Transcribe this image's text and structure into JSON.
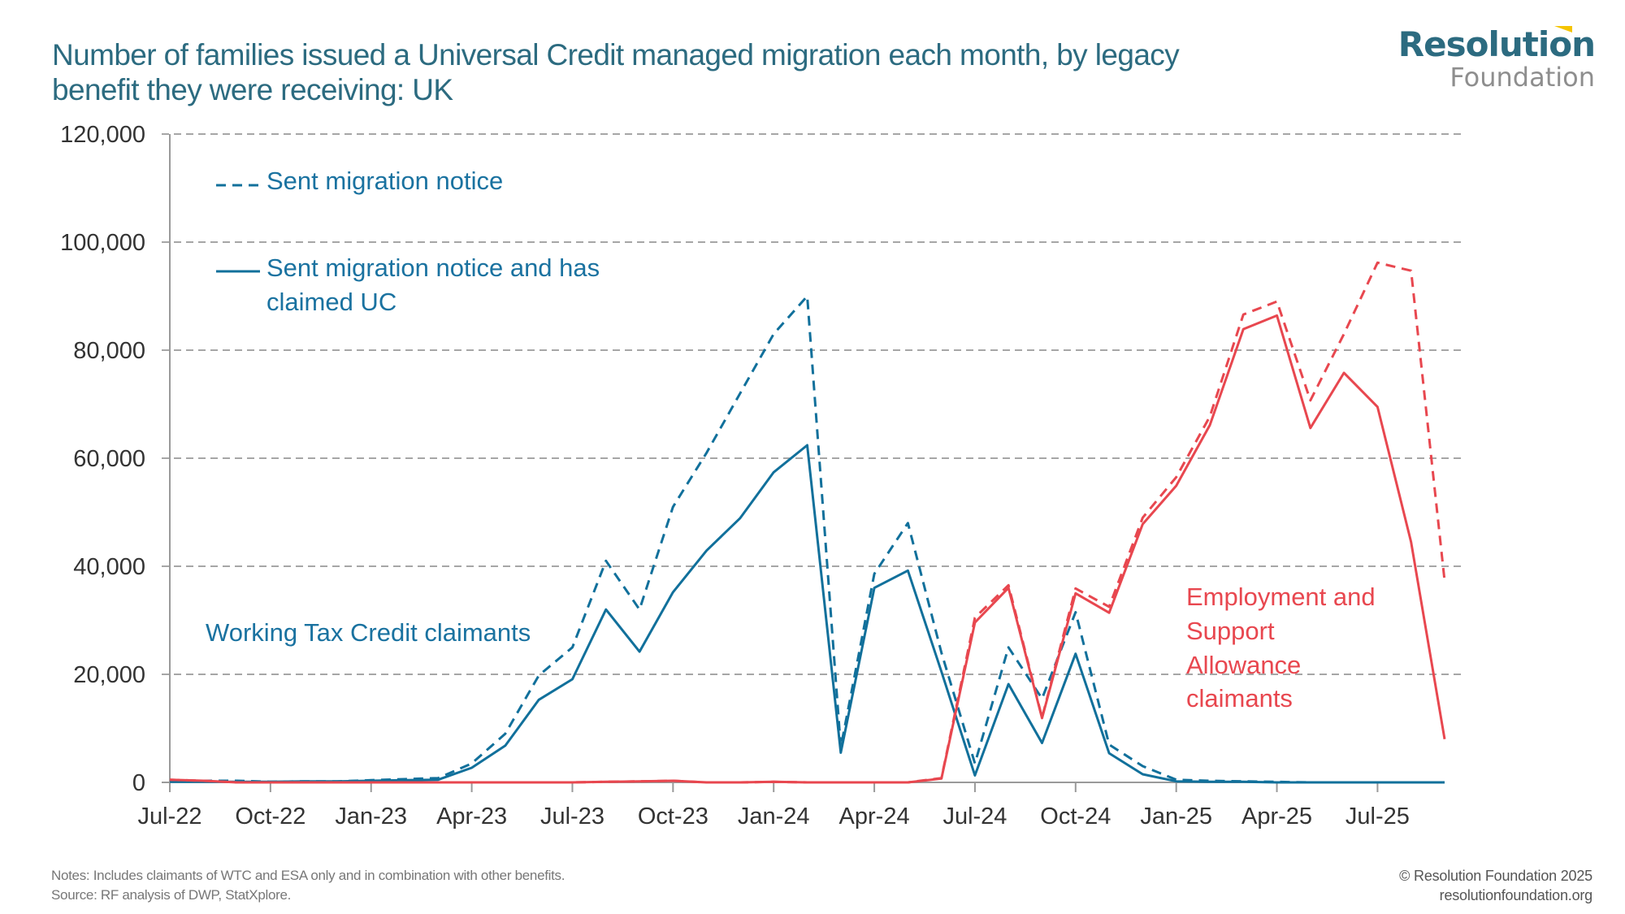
{
  "title": {
    "line1": "Number of families issued a Universal Credit managed migration each month, by legacy",
    "line2": "benefit they were receiving: UK"
  },
  "logo": {
    "top": "Resolution",
    "bottom": "Foundation"
  },
  "footer": {
    "notes": "Notes: Includes claimants of WTC and ESA only and in combination with other benefits.",
    "source": "Source: RF analysis of DWP, StatXplore.",
    "copyright": "© Resolution Foundation 2025",
    "website": "resolutionfoundation.org"
  },
  "colors": {
    "wtc": "#11709b",
    "esa": "#e8474f",
    "grid": "#a6a6a6",
    "axis": "#9a9a9a"
  },
  "chart_data": {
    "type": "line",
    "title": "Number of families issued a Universal Credit managed migration each month, by legacy benefit they were receiving: UK",
    "xlabel": "",
    "ylabel": "",
    "ylim": [
      0,
      120000
    ],
    "yticks": [
      0,
      20000,
      40000,
      60000,
      80000,
      100000,
      120000
    ],
    "ytick_labels": [
      "0",
      "20,000",
      "40,000",
      "60,000",
      "80,000",
      "100,000",
      "120,000"
    ],
    "grid": true,
    "x": [
      "Jul-22",
      "Aug-22",
      "Sep-22",
      "Oct-22",
      "Nov-22",
      "Dec-22",
      "Jan-23",
      "Feb-23",
      "Mar-23",
      "Apr-23",
      "May-23",
      "Jun-23",
      "Jul-23",
      "Aug-23",
      "Sep-23",
      "Oct-23",
      "Nov-23",
      "Dec-23",
      "Jan-24",
      "Feb-24",
      "Mar-24",
      "Apr-24",
      "May-24",
      "Jun-24",
      "Jul-24",
      "Aug-24",
      "Sep-24",
      "Oct-24",
      "Nov-24",
      "Dec-24",
      "Jan-25",
      "Feb-25",
      "Mar-25",
      "Apr-25",
      "May-25",
      "Jun-25",
      "Jul-25",
      "Aug-25",
      "Sep-25"
    ],
    "xtick_labels": [
      "Jul-22",
      "Oct-22",
      "Jan-23",
      "Apr-23",
      "Jul-23",
      "Oct-23",
      "Jan-24",
      "Apr-24",
      "Jul-24",
      "Oct-24",
      "Jan-25",
      "Apr-25",
      "Jul-25"
    ],
    "legend": [
      {
        "label": "Sent migration notice",
        "style": "dashed"
      },
      {
        "label": "Sent migration notice and has",
        "label2": "claimed UC",
        "style": "solid"
      }
    ],
    "annotations": {
      "wtc": "Working Tax Credit claimants",
      "esa": [
        "Employment and",
        "Support",
        "Allowance",
        "claimants"
      ]
    },
    "series": [
      {
        "name": "Working Tax Credit claimants - Sent migration notice",
        "group": "wtc",
        "style": "dashed",
        "values": [
          200,
          300,
          300,
          100,
          200,
          200,
          400,
          600,
          800,
          3500,
          9000,
          19800,
          25000,
          41000,
          32000,
          51000,
          61000,
          72000,
          83000,
          90000,
          6500,
          38600,
          48000,
          24000,
          3500,
          25000,
          15500,
          31500,
          7000,
          3000,
          500,
          300,
          200,
          100,
          0,
          0,
          0,
          0,
          0
        ]
      },
      {
        "name": "Working Tax Credit claimants - Sent migration notice and has claimed UC",
        "group": "wtc",
        "style": "solid",
        "values": [
          100,
          100,
          100,
          100,
          200,
          200,
          300,
          400,
          500,
          2700,
          6800,
          15300,
          19100,
          32000,
          24200,
          35200,
          42900,
          48900,
          57400,
          62400,
          5500,
          36000,
          39200,
          20500,
          1300,
          18200,
          7300,
          23800,
          5400,
          1500,
          200,
          100,
          100,
          0,
          0,
          0,
          0,
          0,
          0
        ]
      },
      {
        "name": "Employment and Support Allowance claimants - Sent migration notice",
        "group": "esa",
        "style": "dashed",
        "values": [
          500,
          300,
          0,
          0,
          0,
          0,
          0,
          0,
          0,
          0,
          0,
          0,
          0,
          100,
          200,
          300,
          0,
          0,
          100,
          0,
          0,
          0,
          0,
          800,
          30500,
          36500,
          12000,
          35900,
          32500,
          49000,
          56500,
          67700,
          86600,
          89000,
          70700,
          83000,
          96200,
          94700,
          37300
        ]
      },
      {
        "name": "Employment and Support Allowance claimants - Sent migration notice and has claimed UC",
        "group": "esa",
        "style": "solid",
        "values": [
          500,
          300,
          0,
          0,
          0,
          0,
          0,
          0,
          0,
          0,
          0,
          0,
          0,
          100,
          200,
          300,
          0,
          0,
          100,
          0,
          0,
          0,
          0,
          700,
          29600,
          36000,
          11900,
          35000,
          31400,
          47800,
          54900,
          66100,
          83900,
          86400,
          65600,
          75800,
          69500,
          44500,
          8000
        ]
      }
    ]
  }
}
